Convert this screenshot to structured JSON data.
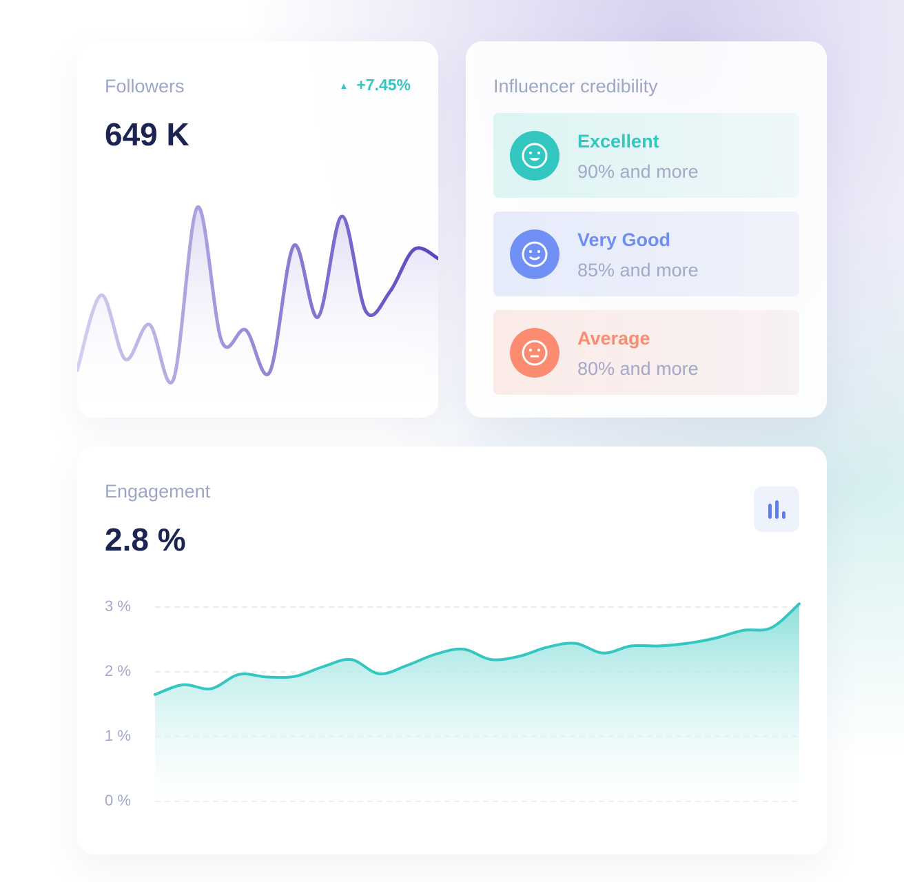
{
  "followers": {
    "label": "Followers",
    "change": "+7.45%",
    "value": "649 K"
  },
  "credibility": {
    "title": "Influencer credibility",
    "levels": [
      {
        "name": "Excellent",
        "description": "90% and more"
      },
      {
        "name": "Very Good",
        "description": "85% and more"
      },
      {
        "name": "Average",
        "description": "80% and more"
      }
    ]
  },
  "engagement": {
    "label": "Engagement",
    "value": "2.8 %"
  },
  "chart_data": [
    {
      "type": "line",
      "values": [
        7,
        48,
        13,
        32,
        2,
        96,
        23,
        29,
        6,
        75,
        36,
        91,
        39,
        50,
        73,
        68
      ],
      "ylim": [
        0,
        100
      ],
      "color": "#5b43c0"
    },
    {
      "type": "area",
      "values": [
        1.65,
        1.8,
        1.74,
        1.96,
        1.92,
        1.93,
        2.08,
        2.19,
        1.97,
        2.1,
        2.27,
        2.35,
        2.19,
        2.24,
        2.38,
        2.44,
        2.29,
        2.4,
        2.4,
        2.44,
        2.52,
        2.64,
        2.68,
        3.05
      ],
      "ylim": [
        0,
        3
      ],
      "yticks": [
        {
          "value": 0,
          "label": "0 %"
        },
        {
          "value": 1,
          "label": "1 %"
        },
        {
          "value": 2,
          "label": "2 %"
        },
        {
          "value": 3,
          "label": "3 %"
        }
      ],
      "grid": true,
      "color": "#34c6c0"
    }
  ]
}
